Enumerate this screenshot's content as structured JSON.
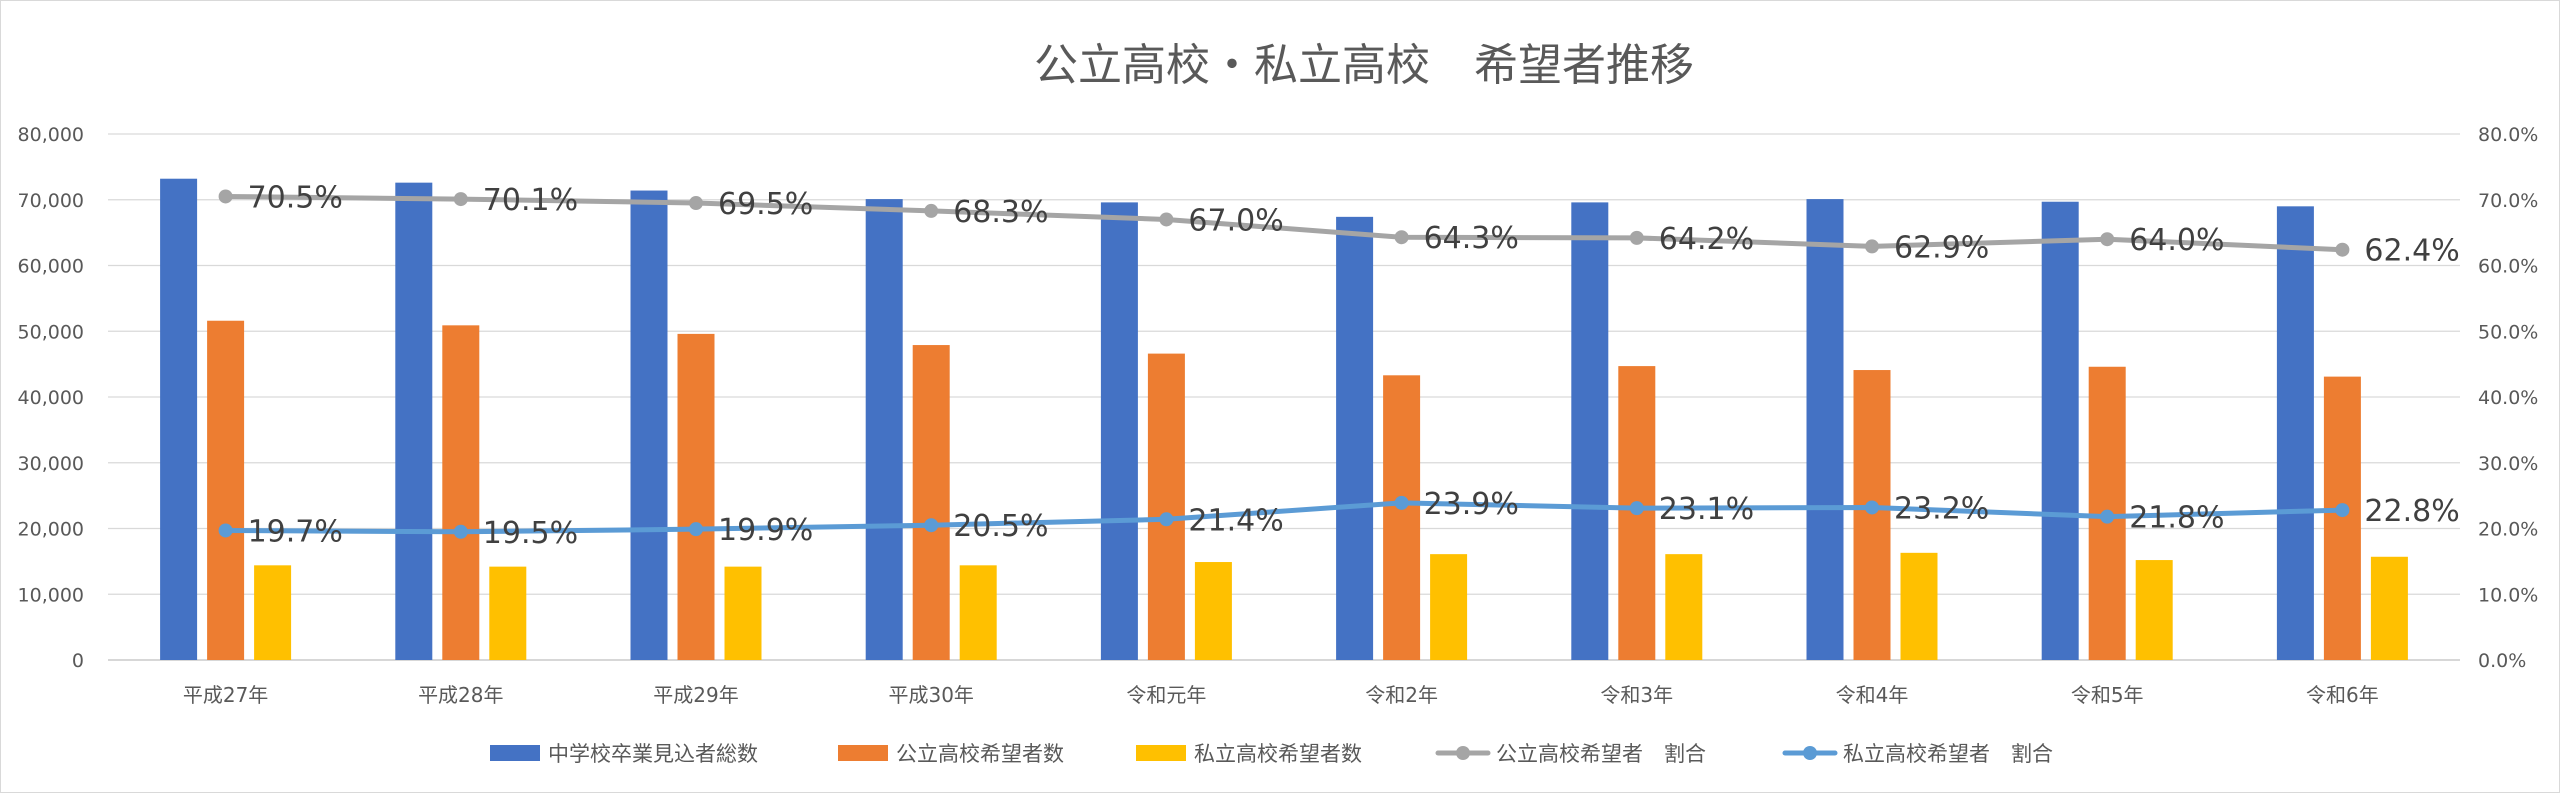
{
  "chart_data": {
    "type": "bar",
    "title": "公立高校・私立高校　希望者推移",
    "categories": [
      "平成27年",
      "平成28年",
      "平成29年",
      "平成30年",
      "令和元年",
      "令和2年",
      "令和3年",
      "令和4年",
      "令和5年",
      "令和6年"
    ],
    "series": [
      {
        "name": "中学校卒業見込者総数",
        "type": "bar",
        "axis": "left",
        "color": "#4472C4",
        "values": [
          73200,
          72600,
          71400,
          70100,
          69600,
          67400,
          69600,
          70100,
          69700,
          69000
        ]
      },
      {
        "name": "公立高校希望者数",
        "type": "bar",
        "axis": "left",
        "color": "#ED7D31",
        "values": [
          51600,
          50900,
          49600,
          47900,
          46600,
          43300,
          44700,
          44100,
          44600,
          43100
        ]
      },
      {
        "name": "私立高校希望者数",
        "type": "bar",
        "axis": "left",
        "color": "#FFC000",
        "values": [
          14400,
          14200,
          14200,
          14400,
          14900,
          16100,
          16100,
          16300,
          15200,
          15700
        ]
      },
      {
        "name": "公立高校希望者　割合",
        "type": "line",
        "axis": "right",
        "color": "#A5A5A5",
        "values": [
          70.5,
          70.1,
          69.5,
          68.3,
          67.0,
          64.3,
          64.2,
          62.9,
          64.0,
          62.4
        ],
        "labels": [
          "70.5%",
          "70.1%",
          "69.5%",
          "68.3%",
          "67.0%",
          "64.3%",
          "64.2%",
          "62.9%",
          "64.0%",
          "62.4%"
        ]
      },
      {
        "name": "私立高校希望者　割合",
        "type": "line",
        "axis": "right",
        "color": "#5B9BD5",
        "values": [
          19.7,
          19.5,
          19.9,
          20.5,
          21.4,
          23.9,
          23.1,
          23.2,
          21.8,
          22.8
        ],
        "labels": [
          "19.7%",
          "19.5%",
          "19.9%",
          "20.5%",
          "21.4%",
          "23.9%",
          "23.1%",
          "23.2%",
          "21.8%",
          "22.8%"
        ]
      }
    ],
    "ylim_left": [
      0,
      80000
    ],
    "ylim_right": [
      0,
      80
    ],
    "y_ticks_left": [
      "0",
      "10,000",
      "20,000",
      "30,000",
      "40,000",
      "50,000",
      "60,000",
      "70,000",
      "80,000"
    ],
    "y_ticks_right": [
      "0.0%",
      "10.0%",
      "20.0%",
      "30.0%",
      "40.0%",
      "50.0%",
      "60.0%",
      "70.0%",
      "80.0%"
    ],
    "grid": true,
    "legend_position": "bottom"
  }
}
